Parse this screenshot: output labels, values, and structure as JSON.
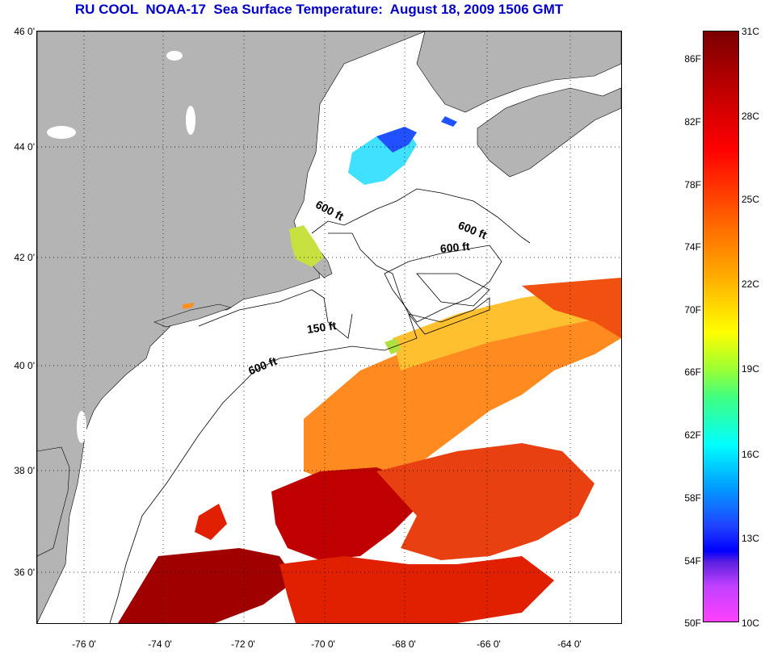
{
  "title": "RU COOL  NOAA-17  Sea Surface Temperature:  August 18, 2009 1506 GMT",
  "map": {
    "lat_ticks": [
      "46 0'",
      "44 0'",
      "42 0'",
      "40 0'",
      "38 0'",
      "36 0'"
    ],
    "lon_ticks": [
      "-76 0'",
      "-74 0'",
      "-72 0'",
      "-70 0'",
      "-68 0'",
      "-66 0'",
      "-64 0'"
    ],
    "contour_labels": [
      "600 ft",
      "600 ft",
      "600 ft",
      "150 ft",
      "600 ft"
    ],
    "colors": {
      "land": "#b4b4b4",
      "ocean_nodata": "#ffffff",
      "warm_dark": "#b00000",
      "warm_red": "#e02000",
      "warm_orange": "#ff7a10",
      "warm_yellow": "#ffc020",
      "cool_cyan": "#40e0ff",
      "cool_blue": "#2050ff"
    }
  },
  "colorbar": {
    "fahrenheit_labels": [
      "86F",
      "82F",
      "78F",
      "74F",
      "70F",
      "66F",
      "62F",
      "58F",
      "54F",
      "50F"
    ],
    "celsius_labels": [
      "31C",
      "28C",
      "25C",
      "22C",
      "19C",
      "16C",
      "13C",
      "10C"
    ]
  }
}
